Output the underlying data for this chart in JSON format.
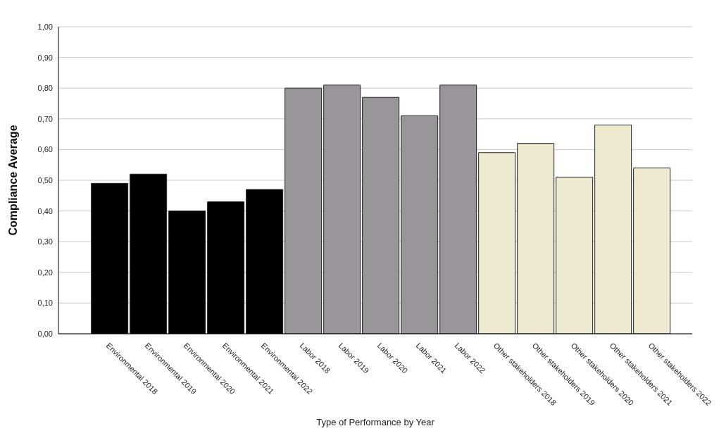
{
  "chart_data": {
    "type": "bar",
    "xlabel": "Type of Performance by Year",
    "ylabel": "Compliance Average",
    "categories": [
      "Environmental 2018",
      "Environmental 2019",
      "Environmental 2020",
      "Environmental 2021",
      "Environmental 2022",
      "Labor 2018",
      "Labor 2019",
      "Labor 2020",
      "Labor 2021",
      "Labor 2022",
      "Other stakeholders 2018",
      "Other stakeholders 2019",
      "Other stakeholders 2020",
      "Other stakeholders 2021",
      "Other stakeholders 2022"
    ],
    "values": [
      0.49,
      0.52,
      0.4,
      0.43,
      0.47,
      0.8,
      0.81,
      0.77,
      0.71,
      0.81,
      0.59,
      0.62,
      0.51,
      0.68,
      0.54
    ],
    "colors": [
      "#000000",
      "#000000",
      "#000000",
      "#000000",
      "#000000",
      "#99959a",
      "#99959a",
      "#99959a",
      "#99959a",
      "#99959a",
      "#efe9cf",
      "#efe9cf",
      "#efe9cf",
      "#efe9cf",
      "#efe9cf"
    ],
    "ylim": [
      0,
      1
    ],
    "yticks": [
      {
        "value": 0,
        "label": "0,00"
      },
      {
        "value": 0.1,
        "label": "0,10"
      },
      {
        "value": 0.2,
        "label": "0,20"
      },
      {
        "value": 0.3,
        "label": "0,30"
      },
      {
        "value": 0.4,
        "label": "0,40"
      },
      {
        "value": 0.5,
        "label": "0,50"
      },
      {
        "value": 0.6,
        "label": "0,60"
      },
      {
        "value": 0.7,
        "label": "0,70"
      },
      {
        "value": 0.8,
        "label": "0,80"
      },
      {
        "value": 0.9,
        "label": "0,90"
      },
      {
        "value": 1,
        "label": "1,00"
      }
    ],
    "grid": "y"
  }
}
